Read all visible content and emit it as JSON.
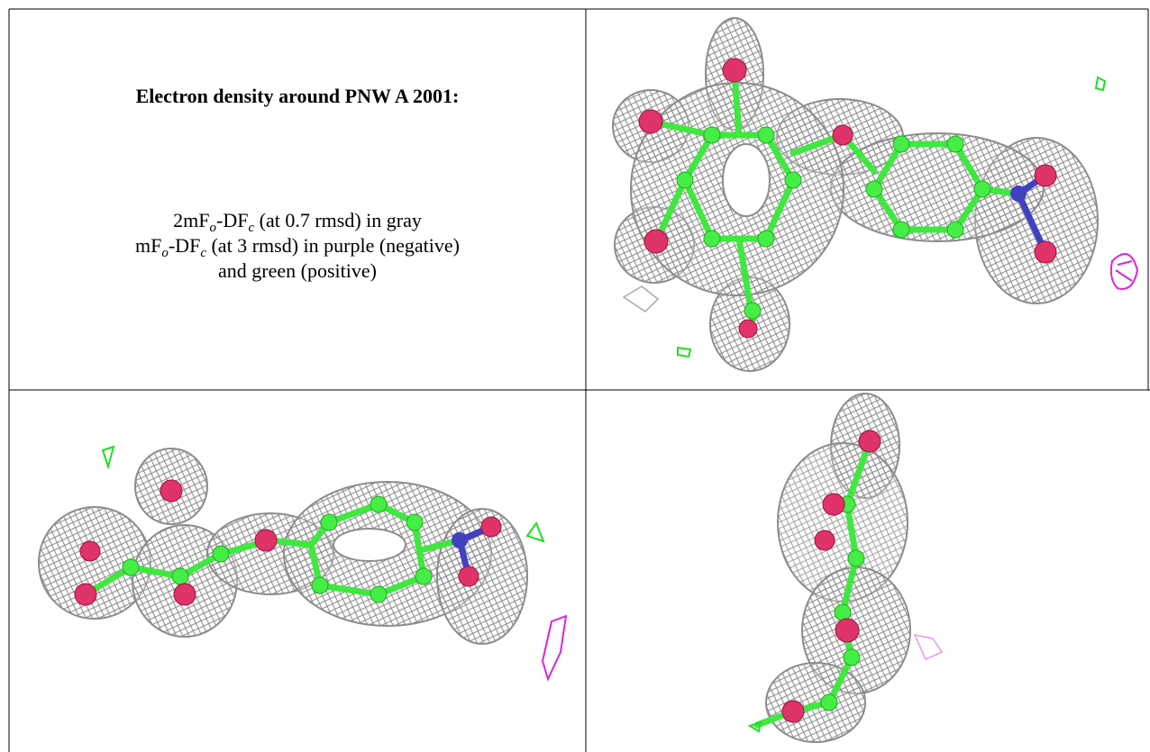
{
  "header": {
    "title": "Electron density around PNW A 2001:"
  },
  "caption": {
    "lines": [
      [
        {
          "text": "2mF"
        },
        {
          "sub": "o"
        },
        {
          "text": "-DF"
        },
        {
          "sub": "c"
        },
        {
          "text": " (at 0.7 rmsd) in gray"
        }
      ],
      [
        {
          "text": "mF"
        },
        {
          "sub": "o"
        },
        {
          "text": "-DF"
        },
        {
          "sub": "c"
        },
        {
          "text": " (at 3 rmsd) in purple (negative)"
        }
      ],
      [
        {
          "text": "and green (positive)"
        }
      ]
    ]
  }
}
